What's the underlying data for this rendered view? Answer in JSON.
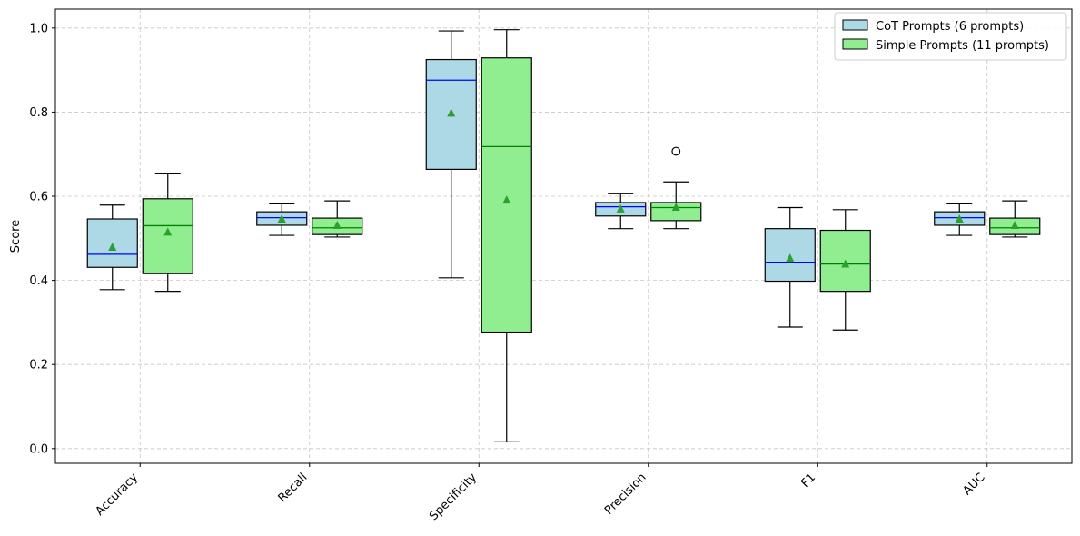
{
  "chart_data": {
    "type": "boxplot",
    "title": "",
    "xlabel": "",
    "ylabel": "Score",
    "ylim": [
      -0.035,
      1.045
    ],
    "yticks": [
      "0.0",
      "0.2",
      "0.4",
      "0.6",
      "0.8",
      "1.0"
    ],
    "grid": true,
    "legend_position": "top-right",
    "categories": [
      "Accuracy",
      "Recall",
      "Specificity",
      "Precision",
      "F1",
      "AUC"
    ],
    "series": [
      {
        "name": "CoT Prompts (6 prompts)",
        "fill": "#add8e6",
        "median_color": "#0000ff",
        "mean_color": "#2ca02c",
        "boxes": [
          {
            "whislo": 0.378,
            "q1": 0.431,
            "med": 0.462,
            "q3": 0.546,
            "whishi": 0.579,
            "mean": 0.479,
            "fliers": []
          },
          {
            "whislo": 0.507,
            "q1": 0.531,
            "med": 0.549,
            "q3": 0.563,
            "whishi": 0.582,
            "mean": 0.546,
            "fliers": []
          },
          {
            "whislo": 0.406,
            "q1": 0.664,
            "med": 0.876,
            "q3": 0.925,
            "whishi": 0.993,
            "mean": 0.798,
            "fliers": []
          },
          {
            "whislo": 0.523,
            "q1": 0.553,
            "med": 0.575,
            "q3": 0.585,
            "whishi": 0.607,
            "mean": 0.57,
            "fliers": []
          },
          {
            "whislo": 0.289,
            "q1": 0.398,
            "med": 0.443,
            "q3": 0.523,
            "whishi": 0.573,
            "mean": 0.453,
            "fliers": []
          },
          {
            "whislo": 0.507,
            "q1": 0.531,
            "med": 0.549,
            "q3": 0.563,
            "whishi": 0.582,
            "mean": 0.546,
            "fliers": []
          }
        ]
      },
      {
        "name": "Simple Prompts (11 prompts)",
        "fill": "#90ee90",
        "median_color": "#008000",
        "mean_color": "#2ca02c",
        "boxes": [
          {
            "whislo": 0.374,
            "q1": 0.416,
            "med": 0.53,
            "q3": 0.594,
            "whishi": 0.655,
            "mean": 0.515,
            "fliers": []
          },
          {
            "whislo": 0.503,
            "q1": 0.509,
            "med": 0.525,
            "q3": 0.548,
            "whishi": 0.589,
            "mean": 0.531,
            "fliers": []
          },
          {
            "whislo": 0.016,
            "q1": 0.277,
            "med": 0.718,
            "q3": 0.929,
            "whishi": 0.996,
            "mean": 0.591,
            "fliers": []
          },
          {
            "whislo": 0.523,
            "q1": 0.542,
            "med": 0.573,
            "q3": 0.585,
            "whishi": 0.634,
            "mean": 0.574,
            "fliers": [
              0.707
            ]
          },
          {
            "whislo": 0.282,
            "q1": 0.374,
            "med": 0.439,
            "q3": 0.519,
            "whishi": 0.568,
            "mean": 0.439,
            "fliers": []
          },
          {
            "whislo": 0.503,
            "q1": 0.509,
            "med": 0.525,
            "q3": 0.548,
            "whishi": 0.589,
            "mean": 0.531,
            "fliers": []
          }
        ]
      }
    ]
  }
}
